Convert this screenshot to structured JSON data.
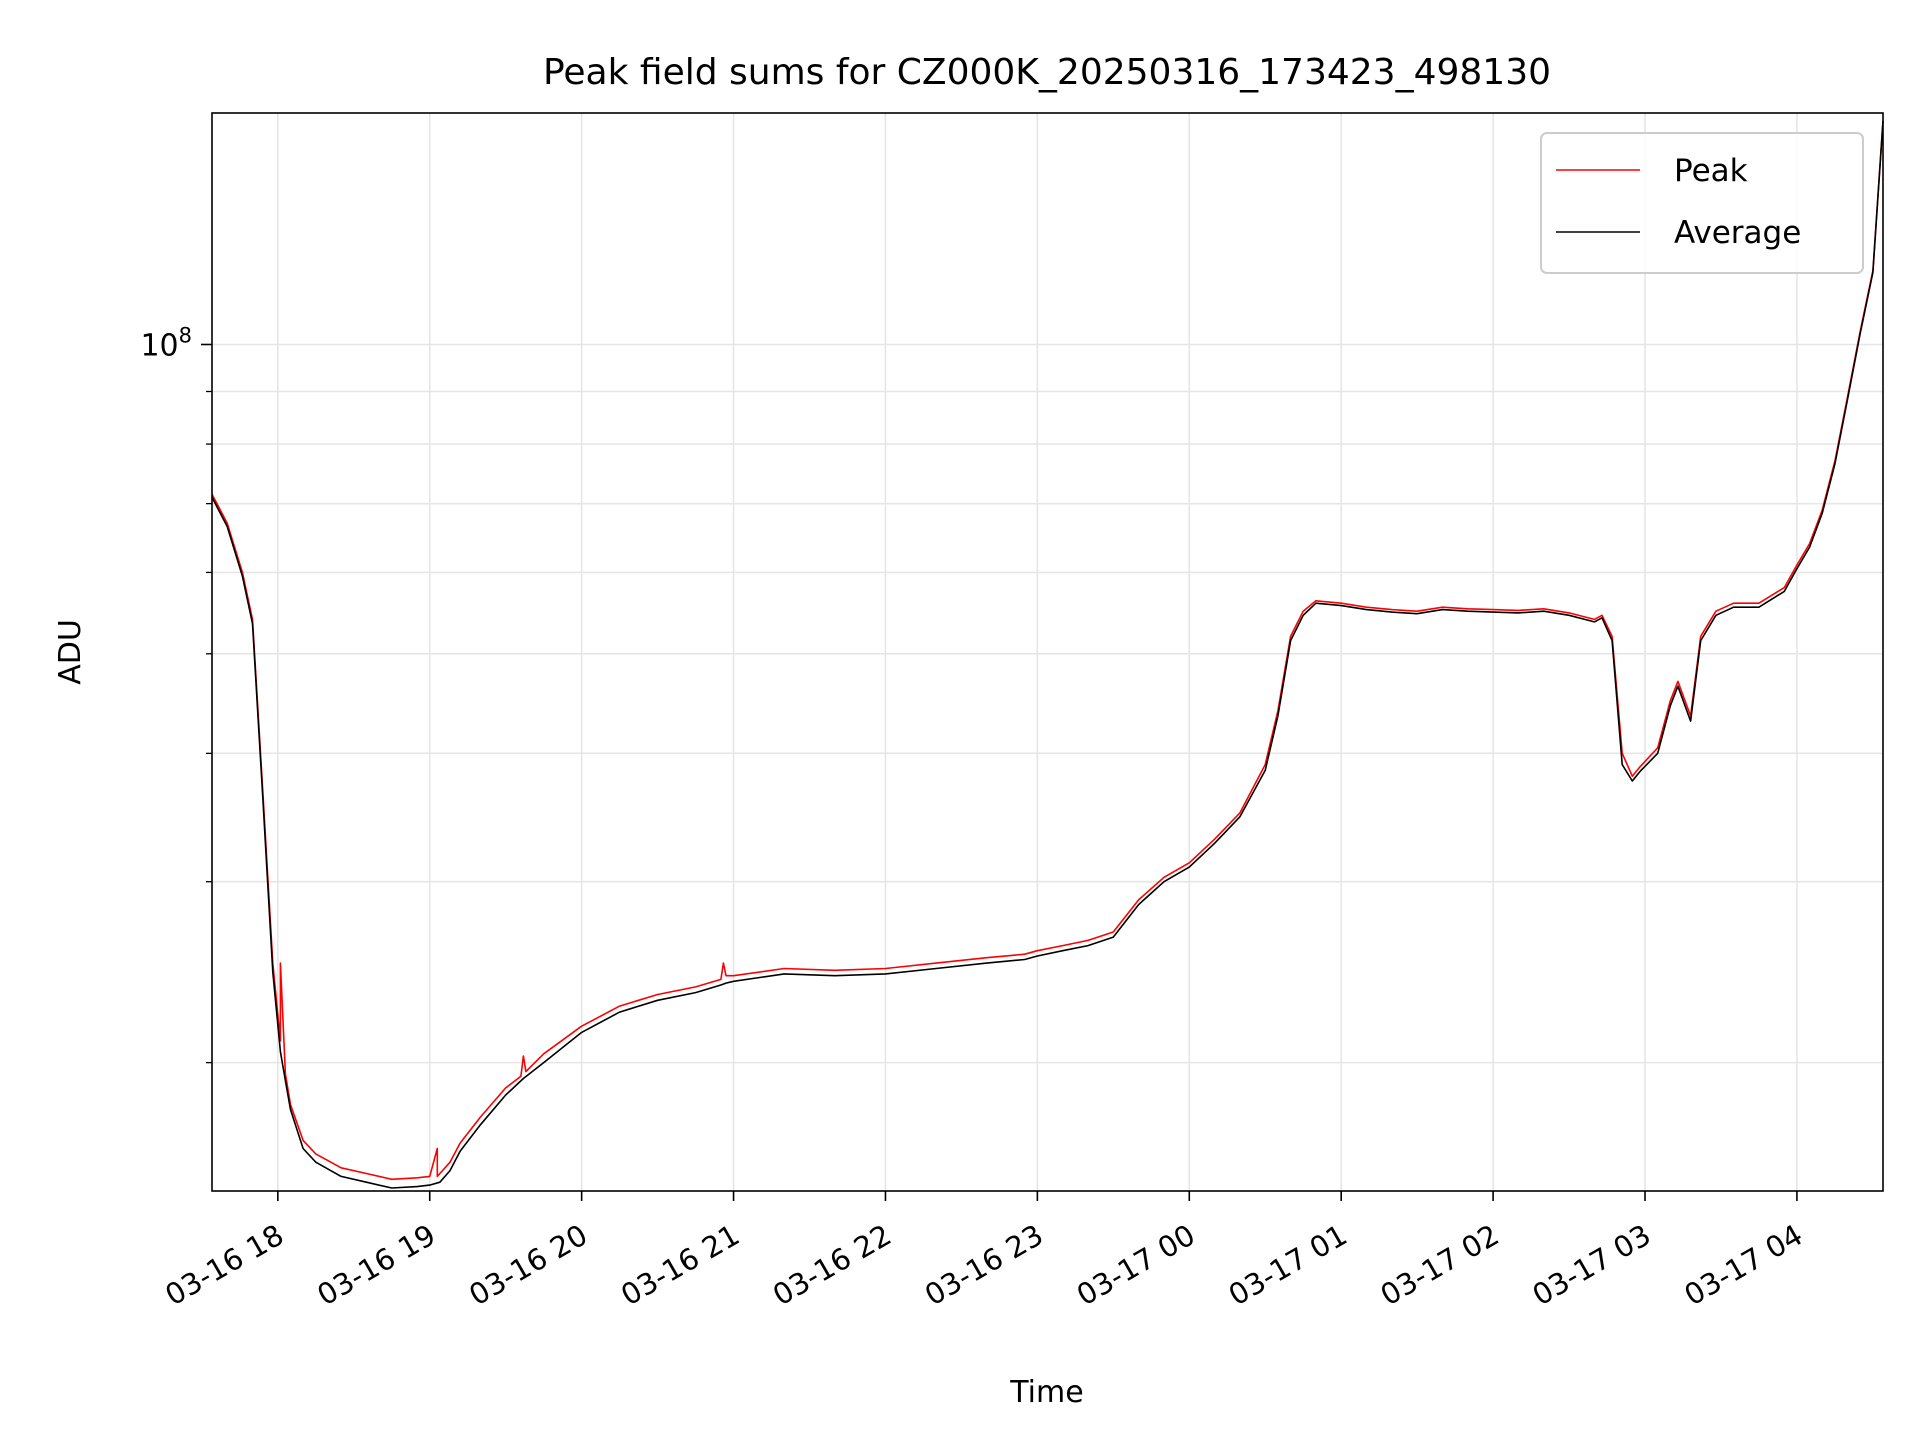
{
  "chart_data": {
    "type": "line",
    "title": "Peak field sums for CZ000K_20250316_173423_498130",
    "xlabel": "Time",
    "ylabel": "ADU",
    "y_scale": "log",
    "ylim": [
      15000000,
      168000000
    ],
    "xlim": [
      "2025-03-16 17:34",
      "2025-03-17 04:34"
    ],
    "grid": true,
    "legend": "top-right",
    "x_ticks": [
      {
        "t": "2025-03-16 18:00",
        "label": "03-16 18"
      },
      {
        "t": "2025-03-16 19:00",
        "label": "03-16 19"
      },
      {
        "t": "2025-03-16 20:00",
        "label": "03-16 20"
      },
      {
        "t": "2025-03-16 21:00",
        "label": "03-16 21"
      },
      {
        "t": "2025-03-16 22:00",
        "label": "03-16 22"
      },
      {
        "t": "2025-03-16 23:00",
        "label": "03-16 23"
      },
      {
        "t": "2025-03-17 00:00",
        "label": "03-17 00"
      },
      {
        "t": "2025-03-17 01:00",
        "label": "03-17 01"
      },
      {
        "t": "2025-03-17 02:00",
        "label": "03-17 02"
      },
      {
        "t": "2025-03-17 03:00",
        "label": "03-17 03"
      },
      {
        "t": "2025-03-17 04:00",
        "label": "03-17 04"
      }
    ],
    "y_ticks_major": [
      {
        "v": 100000000,
        "base": "10",
        "exp": "8"
      }
    ],
    "y_ticks_minor": [
      20000000,
      30000000,
      40000000,
      50000000,
      60000000,
      70000000,
      80000000,
      90000000
    ],
    "series": [
      {
        "name": "Peak",
        "color": "#ff0000",
        "x": [
          "2025-03-16 17:34",
          "2025-03-16 17:40",
          "2025-03-16 17:46",
          "2025-03-16 17:50",
          "2025-03-16 17:54",
          "2025-03-16 17:58",
          "2025-03-16 18:01",
          "2025-03-16 18:01",
          "2025-03-16 18:03",
          "2025-03-16 18:05",
          "2025-03-16 18:10",
          "2025-03-16 18:15",
          "2025-03-16 18:25",
          "2025-03-16 18:35",
          "2025-03-16 18:45",
          "2025-03-16 18:55",
          "2025-03-16 19:00",
          "2025-03-16 19:03",
          "2025-03-16 19:03",
          "2025-03-16 19:04",
          "2025-03-16 19:08",
          "2025-03-16 19:12",
          "2025-03-16 19:20",
          "2025-03-16 19:30",
          "2025-03-16 19:36",
          "2025-03-16 19:37",
          "2025-03-16 19:38",
          "2025-03-16 19:45",
          "2025-03-16 20:00",
          "2025-03-16 20:15",
          "2025-03-16 20:30",
          "2025-03-16 20:45",
          "2025-03-16 20:55",
          "2025-03-16 20:56",
          "2025-03-16 20:57",
          "2025-03-16 21:00",
          "2025-03-16 21:20",
          "2025-03-16 21:40",
          "2025-03-16 22:00",
          "2025-03-16 22:20",
          "2025-03-16 22:40",
          "2025-03-16 22:55",
          "2025-03-16 23:00",
          "2025-03-16 23:10",
          "2025-03-16 23:20",
          "2025-03-16 23:30",
          "2025-03-16 23:40",
          "2025-03-16 23:50",
          "2025-03-17 00:00",
          "2025-03-17 00:10",
          "2025-03-17 00:20",
          "2025-03-17 00:30",
          "2025-03-17 00:35",
          "2025-03-17 00:40",
          "2025-03-17 00:45",
          "2025-03-17 00:50",
          "2025-03-17 01:00",
          "2025-03-17 01:10",
          "2025-03-17 01:20",
          "2025-03-17 01:30",
          "2025-03-17 01:40",
          "2025-03-17 01:50",
          "2025-03-17 02:00",
          "2025-03-17 02:10",
          "2025-03-17 02:20",
          "2025-03-17 02:30",
          "2025-03-17 02:40",
          "2025-03-17 02:43",
          "2025-03-17 02:47",
          "2025-03-17 02:51",
          "2025-03-17 02:55",
          "2025-03-17 02:58",
          "2025-03-17 03:05",
          "2025-03-17 03:10",
          "2025-03-17 03:13",
          "2025-03-17 03:18",
          "2025-03-17 03:22",
          "2025-03-17 03:28",
          "2025-03-17 03:35",
          "2025-03-17 03:45",
          "2025-03-17 03:55",
          "2025-03-17 04:00",
          "2025-03-17 04:05",
          "2025-03-17 04:10",
          "2025-03-17 04:15",
          "2025-03-17 04:20",
          "2025-03-17 04:25",
          "2025-03-17 04:30",
          "2025-03-17 04:34"
        ],
        "values": [
          71500000,
          67000000,
          60000000,
          54000000,
          37000000,
          25000000,
          21000000,
          25000000,
          19500000,
          18200000,
          16800000,
          16300000,
          15800000,
          15600000,
          15400000,
          15450000,
          15500000,
          16500000,
          15500000,
          15600000,
          16000000,
          16700000,
          17700000,
          18900000,
          19400000,
          20300000,
          19600000,
          20400000,
          21700000,
          22700000,
          23300000,
          23700000,
          24100000,
          25000000,
          24300000,
          24300000,
          24700000,
          24600000,
          24700000,
          25000000,
          25300000,
          25500000,
          25700000,
          26000000,
          26300000,
          26800000,
          28800000,
          30300000,
          31300000,
          33000000,
          35000000,
          39000000,
          44000000,
          52000000,
          55000000,
          56300000,
          56000000,
          55500000,
          55200000,
          55000000,
          55500000,
          55300000,
          55200000,
          55100000,
          55300000,
          54800000,
          54000000,
          54500000,
          52000000,
          40000000,
          38000000,
          38800000,
          40500000,
          45000000,
          47000000,
          43500000,
          52000000,
          55000000,
          56000000,
          56000000,
          58000000,
          61000000,
          64000000,
          69000000,
          77000000,
          89000000,
          103000000,
          118000000,
          165000000
        ]
      },
      {
        "name": "Average",
        "color": "#000000",
        "x": [
          "2025-03-16 17:34",
          "2025-03-16 17:40",
          "2025-03-16 17:46",
          "2025-03-16 17:50",
          "2025-03-16 17:54",
          "2025-03-16 17:58",
          "2025-03-16 18:01",
          "2025-03-16 18:03",
          "2025-03-16 18:05",
          "2025-03-16 18:10",
          "2025-03-16 18:15",
          "2025-03-16 18:25",
          "2025-03-16 18:35",
          "2025-03-16 18:45",
          "2025-03-16 18:55",
          "2025-03-16 19:00",
          "2025-03-16 19:04",
          "2025-03-16 19:08",
          "2025-03-16 19:12",
          "2025-03-16 19:20",
          "2025-03-16 19:30",
          "2025-03-16 19:37",
          "2025-03-16 19:45",
          "2025-03-16 20:00",
          "2025-03-16 20:15",
          "2025-03-16 20:30",
          "2025-03-16 20:45",
          "2025-03-16 20:55",
          "2025-03-16 20:57",
          "2025-03-16 21:00",
          "2025-03-16 21:20",
          "2025-03-16 21:40",
          "2025-03-16 22:00",
          "2025-03-16 22:20",
          "2025-03-16 22:40",
          "2025-03-16 22:55",
          "2025-03-16 23:00",
          "2025-03-16 23:10",
          "2025-03-16 23:20",
          "2025-03-16 23:30",
          "2025-03-16 23:40",
          "2025-03-16 23:50",
          "2025-03-17 00:00",
          "2025-03-17 00:10",
          "2025-03-17 00:20",
          "2025-03-17 00:30",
          "2025-03-17 00:35",
          "2025-03-17 00:40",
          "2025-03-17 00:45",
          "2025-03-17 00:50",
          "2025-03-17 01:00",
          "2025-03-17 01:10",
          "2025-03-17 01:20",
          "2025-03-17 01:30",
          "2025-03-17 01:40",
          "2025-03-17 01:50",
          "2025-03-17 02:00",
          "2025-03-17 02:10",
          "2025-03-17 02:20",
          "2025-03-17 02:30",
          "2025-03-17 02:40",
          "2025-03-17 02:43",
          "2025-03-17 02:47",
          "2025-03-17 02:51",
          "2025-03-17 02:55",
          "2025-03-17 02:58",
          "2025-03-17 03:05",
          "2025-03-17 03:10",
          "2025-03-17 03:13",
          "2025-03-17 03:18",
          "2025-03-17 03:22",
          "2025-03-17 03:28",
          "2025-03-17 03:35",
          "2025-03-17 03:45",
          "2025-03-17 03:55",
          "2025-03-17 04:00",
          "2025-03-17 04:05",
          "2025-03-17 04:10",
          "2025-03-17 04:15",
          "2025-03-17 04:20",
          "2025-03-17 04:25",
          "2025-03-17 04:30",
          "2025-03-17 04:34"
        ],
        "values": [
          71000000,
          66500000,
          59500000,
          53500000,
          36500000,
          24500000,
          20500000,
          19200000,
          18000000,
          16500000,
          16000000,
          15500000,
          15300000,
          15100000,
          15150000,
          15200000,
          15300000,
          15700000,
          16400000,
          17400000,
          18600000,
          19300000,
          20000000,
          21400000,
          22400000,
          23000000,
          23400000,
          23800000,
          23900000,
          24000000,
          24400000,
          24300000,
          24400000,
          24700000,
          25000000,
          25200000,
          25400000,
          25700000,
          26000000,
          26500000,
          28500000,
          30000000,
          31000000,
          32700000,
          34700000,
          38500000,
          43500000,
          51500000,
          54500000,
          56000000,
          55700000,
          55200000,
          54900000,
          54700000,
          55200000,
          55000000,
          54900000,
          54800000,
          55000000,
          54500000,
          53700000,
          54200000,
          51500000,
          39000000,
          37600000,
          38400000,
          40000000,
          44500000,
          46500000,
          43000000,
          51500000,
          54500000,
          55500000,
          55500000,
          57500000,
          60500000,
          63500000,
          68500000,
          76500000,
          88500000,
          102500000,
          117500000,
          165000000
        ]
      }
    ]
  }
}
